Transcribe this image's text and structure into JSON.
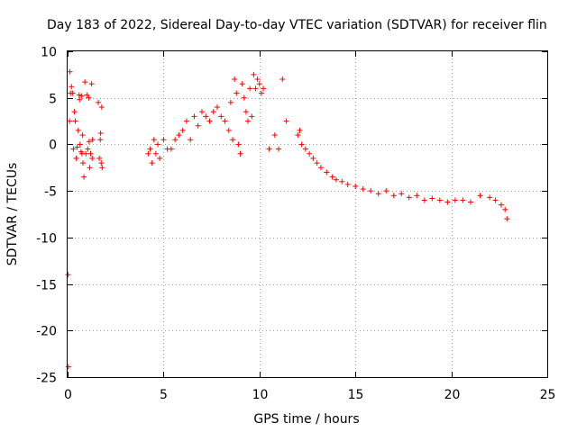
{
  "chart_data": {
    "type": "scatter",
    "title": "Day 183 of 2022, Sidereal Day-to-day VTEC variation (SDTVAR) for receiver flin",
    "xlabel": "GPS time / hours",
    "ylabel": "SDTVAR / TECUs",
    "xlim": [
      0,
      25
    ],
    "ylim": [
      -25,
      10
    ],
    "x_ticks": [
      0,
      5,
      10,
      15,
      20,
      25
    ],
    "y_ticks": [
      -25,
      -20,
      -15,
      -10,
      -5,
      0,
      5,
      10
    ],
    "grid": true,
    "marker": "plus",
    "colors": {
      "points": "#ff0000",
      "grid": "#a0a0a0",
      "axes": "#000000"
    },
    "series": [
      {
        "name": "SDTVAR",
        "x": [
          0.02,
          0.04,
          0.1,
          0.12,
          0.15,
          0.2,
          0.25,
          0.3,
          0.35,
          0.4,
          0.45,
          0.5,
          0.55,
          0.6,
          0.62,
          0.65,
          0.7,
          0.72,
          0.75,
          0.78,
          0.8,
          0.85,
          0.9,
          0.95,
          1.0,
          1.05,
          1.1,
          1.12,
          1.15,
          1.2,
          1.25,
          1.28,
          1.3,
          1.6,
          1.65,
          1.7,
          1.72,
          1.75,
          1.78,
          1.8,
          4.2,
          4.3,
          4.4,
          4.5,
          4.6,
          4.7,
          4.8,
          5.0,
          5.2,
          5.4,
          5.6,
          5.8,
          6.0,
          6.2,
          6.4,
          6.6,
          6.8,
          7.0,
          7.2,
          7.4,
          7.6,
          7.8,
          8.0,
          8.2,
          8.4,
          8.5,
          8.6,
          8.7,
          8.8,
          8.9,
          9.0,
          9.1,
          9.2,
          9.3,
          9.4,
          9.5,
          9.6,
          9.7,
          9.8,
          9.9,
          10.0,
          10.1,
          10.2,
          10.5,
          10.8,
          11.0,
          11.2,
          11.4,
          12.0,
          12.1,
          12.2,
          12.4,
          12.6,
          12.8,
          13.0,
          13.2,
          13.5,
          13.8,
          14.0,
          14.3,
          14.6,
          15.0,
          15.4,
          15.8,
          16.2,
          16.6,
          17.0,
          17.4,
          17.8,
          18.2,
          18.6,
          19.0,
          19.4,
          19.8,
          20.2,
          20.6,
          21.0,
          21.5,
          22.0,
          22.3,
          22.6,
          22.8,
          22.9
        ],
        "y": [
          -14.0,
          -23.9,
          2.5,
          7.8,
          5.5,
          6.2,
          5.5,
          -0.5,
          3.5,
          2.5,
          -1.5,
          -0.3,
          1.5,
          5.3,
          4.8,
          0.0,
          -0.8,
          5.2,
          -1.0,
          1.0,
          -2.0,
          -3.5,
          6.7,
          -1.0,
          5.3,
          -0.5,
          5.0,
          0.3,
          -2.5,
          -1.0,
          6.5,
          -1.5,
          0.5,
          4.5,
          -1.5,
          0.5,
          1.2,
          -2.0,
          4.0,
          -2.5,
          -1.0,
          -0.5,
          -2.0,
          0.5,
          -1.0,
          0.0,
          -1.5,
          0.5,
          -0.5,
          -0.5,
          0.5,
          1.0,
          1.5,
          2.5,
          0.5,
          3.0,
          2.0,
          3.5,
          3.0,
          2.5,
          3.5,
          4.0,
          3.0,
          2.5,
          1.5,
          4.5,
          0.5,
          7.0,
          5.5,
          0.0,
          -1.0,
          6.5,
          5.0,
          3.5,
          2.5,
          6.0,
          3.0,
          7.5,
          6.0,
          7.0,
          6.5,
          5.5,
          6.0,
          -0.5,
          1.0,
          -0.5,
          7.0,
          2.5,
          1.0,
          1.5,
          0.0,
          -0.5,
          -1.0,
          -1.5,
          -2.0,
          -2.5,
          -3.0,
          -3.5,
          -3.8,
          -4.0,
          -4.3,
          -4.5,
          -4.8,
          -5.0,
          -5.3,
          -5.0,
          -5.5,
          -5.3,
          -5.7,
          -5.5,
          -6.0,
          -5.8,
          -6.0,
          -6.2,
          -6.0,
          -6.0,
          -6.2,
          -5.5,
          -5.7,
          -6.0,
          -6.5,
          -7.0,
          -8.0
        ]
      }
    ]
  }
}
